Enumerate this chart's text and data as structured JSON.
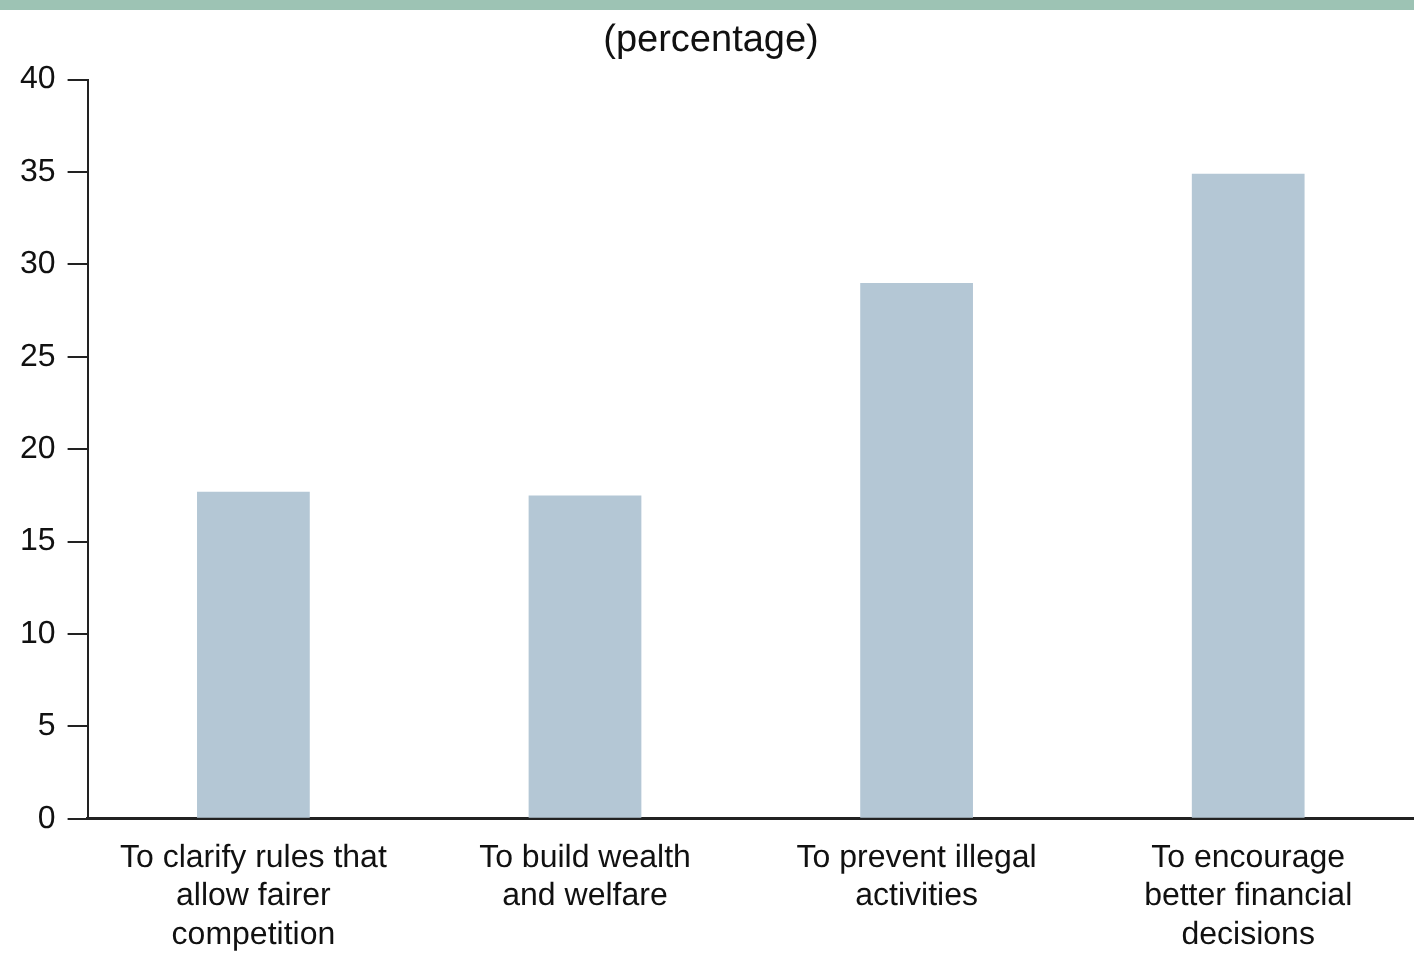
{
  "chart_data": {
    "type": "bar",
    "title": "(percentage)",
    "categories": [
      "To clarify rules that allow fairer competition",
      "To build wealth and welfare",
      "To prevent illegal activities",
      "To encourage better financial decisions"
    ],
    "values": [
      17.7,
      17.5,
      29.0,
      34.9
    ],
    "color": "#b4c7d5",
    "ylim": [
      0,
      40
    ],
    "yticks": [
      0,
      5,
      10,
      15,
      20,
      25,
      30,
      35,
      40
    ],
    "grid": false,
    "legend": false
  }
}
